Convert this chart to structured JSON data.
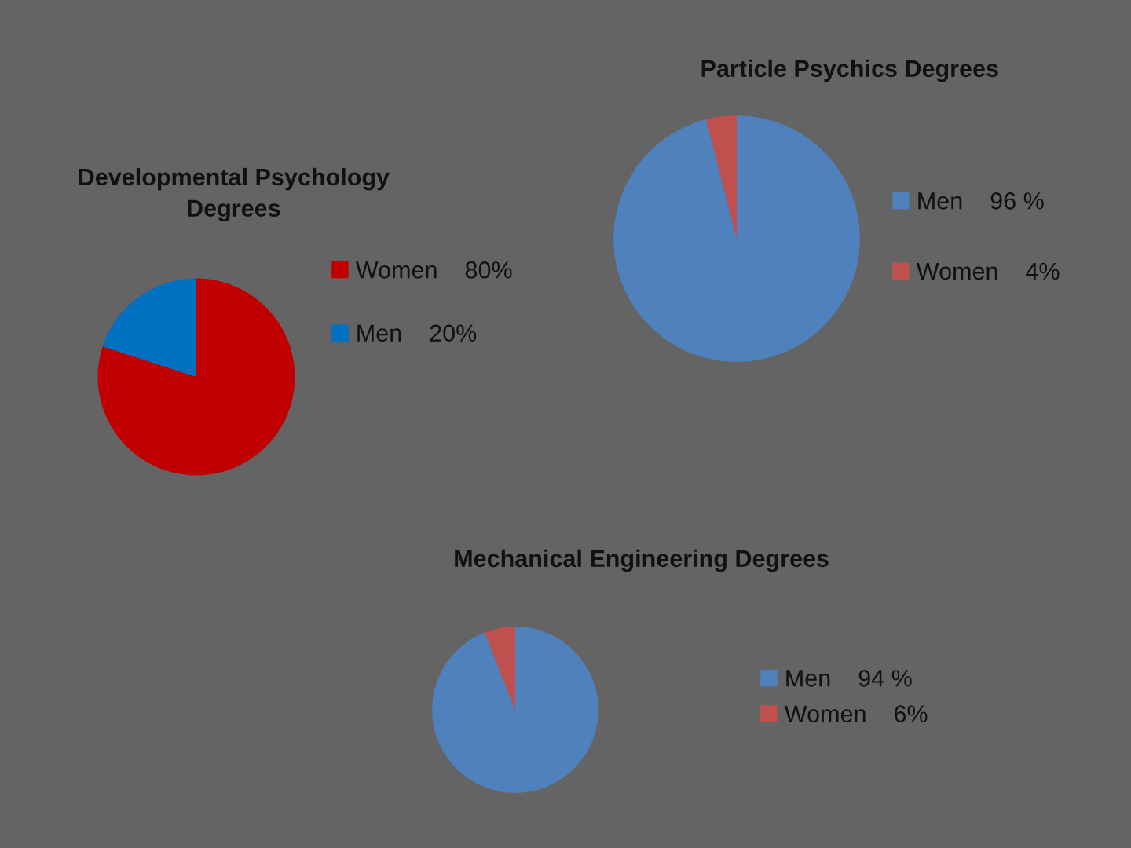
{
  "chart_data": [
    {
      "type": "pie",
      "title": "Developmental Psychology Degrees",
      "categories": [
        "Women",
        "Men"
      ],
      "values": [
        80,
        20
      ],
      "value_labels": [
        "80%",
        "20%"
      ],
      "colors": [
        "#c00000",
        "#0070c0"
      ],
      "legend": "right"
    },
    {
      "type": "pie",
      "title": "Particle Psychics Degrees",
      "categories": [
        "Men",
        "Women"
      ],
      "values": [
        96,
        4
      ],
      "value_labels": [
        "96 %",
        "4%"
      ],
      "colors": [
        "#4f81bd",
        "#c0504d"
      ],
      "legend": "right"
    },
    {
      "type": "pie",
      "title": "Mechanical Engineering Degrees",
      "categories": [
        "Men",
        "Women"
      ],
      "values": [
        94,
        6
      ],
      "value_labels": [
        "94 %",
        "6%"
      ],
      "colors": [
        "#4f81bd",
        "#c0504d"
      ],
      "legend": "right"
    }
  ]
}
